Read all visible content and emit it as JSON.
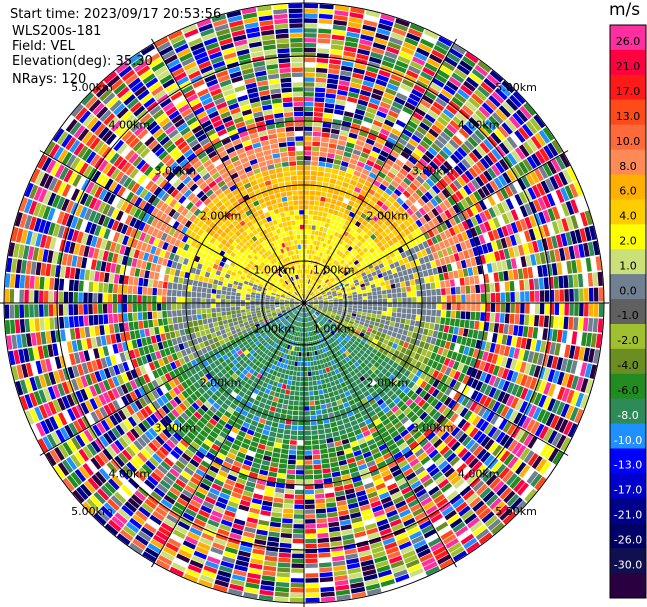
{
  "meta": {
    "start_time": "Start time: 2023/09/17 20:53:56",
    "instrument": "WLS200s-181",
    "field": "Field: VEL",
    "elevation": "Elevation(deg): 35.30",
    "nrays": "NRays: 120"
  },
  "colorbar": {
    "unit": "m/s",
    "ticks": [
      "26.0",
      "21.0",
      "17.0",
      "13.0",
      "10.0",
      "8.0",
      "6.0",
      "4.0",
      "2.0",
      "1.0",
      "0.0",
      "-1.0",
      "-2.0",
      "-4.0",
      "-6.0",
      "-8.0",
      "-10.0",
      "-13.0",
      "-17.0",
      "-21.0",
      "-26.0",
      "-30.0"
    ],
    "colors": [
      "#ff2fa0",
      "#ff0040",
      "#ff1a1a",
      "#ff4a1a",
      "#ff6a3a",
      "#ff8a55",
      "#ffb000",
      "#ffcc00",
      "#ffff00",
      "#cce07a",
      "#708090",
      "#606060",
      "#a0c030",
      "#6b8e23",
      "#228b22",
      "#2e8b57",
      "#1e90ff",
      "#0000ff",
      "#0000cd",
      "#00008b",
      "#000066",
      "#101050",
      "#2a0040"
    ]
  },
  "range_rings": {
    "labels": [
      "1.00km",
      "2.00km",
      "3.00km",
      "4.00km",
      "5.00km"
    ]
  }
}
